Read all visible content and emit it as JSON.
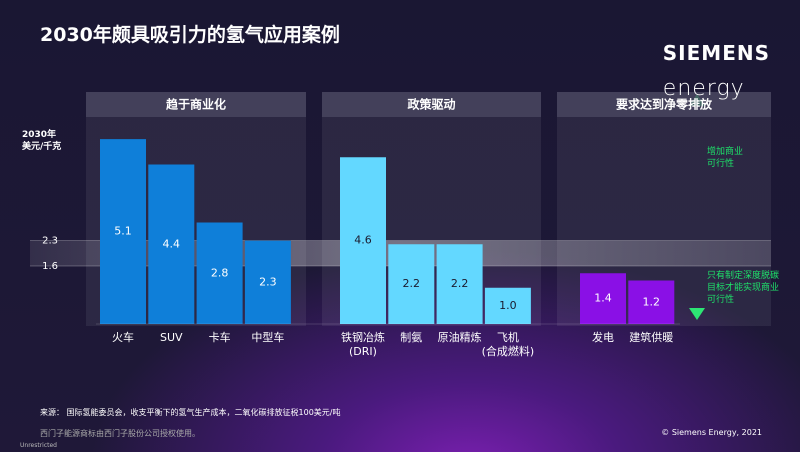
{
  "chart_data": {
    "type": "bar",
    "title": "2030年颇具吸引力的氢气应用案例",
    "logo": [
      "SIEMENS",
      "energy"
    ],
    "y_label": "2030年\n美元/千克",
    "ylim": [
      0,
      6.4
    ],
    "yticks": [
      1.6,
      2.3
    ],
    "reference_band": [
      1.6,
      2.3
    ],
    "series": [
      {
        "name": "趋于商业化",
        "color": "#0f7fd9",
        "label_color": "#ffffff",
        "categories": [
          "火车",
          "SUV",
          "卡车",
          "中型车"
        ],
        "values": [
          5.1,
          4.4,
          2.8,
          2.3
        ],
        "value_labels": [
          "5.1",
          "4.4",
          "2.8",
          "2.3"
        ]
      },
      {
        "name": "政策驱动",
        "color": "#63d8ff",
        "label_color": "#1a1a2e",
        "categories": [
          "铁钢冶炼\n(DRI)",
          "制氨",
          "原油精炼",
          "飞机\n(合成燃料)"
        ],
        "values": [
          4.6,
          2.2,
          2.2,
          1.0
        ],
        "value_labels": [
          "4.6",
          "2.2",
          "2.2",
          "1.0"
        ]
      },
      {
        "name": "要求达到净零排放",
        "color": "#8a10e6",
        "label_color": "#ffffff",
        "categories": [
          "发电",
          "建筑供暖"
        ],
        "values": [
          1.4,
          1.2
        ],
        "value_labels": [
          "1.4",
          "1.2"
        ]
      }
    ],
    "annotations": [
      "增加商业\n可行性",
      "只有制定深度脱碳\n目标才能实现商业\n可行性"
    ],
    "annotation_color": "#1ee36a",
    "source": "来源： 国际氢能委员会，收支平衡下的氢气生产成本，二氧化碳排放征税100美元/吨",
    "trademark": "西门子能源商标由西门子股份公司授权使用。",
    "copyright": "© Siemens Energy, 2021",
    "classification": "Unrestricted"
  }
}
